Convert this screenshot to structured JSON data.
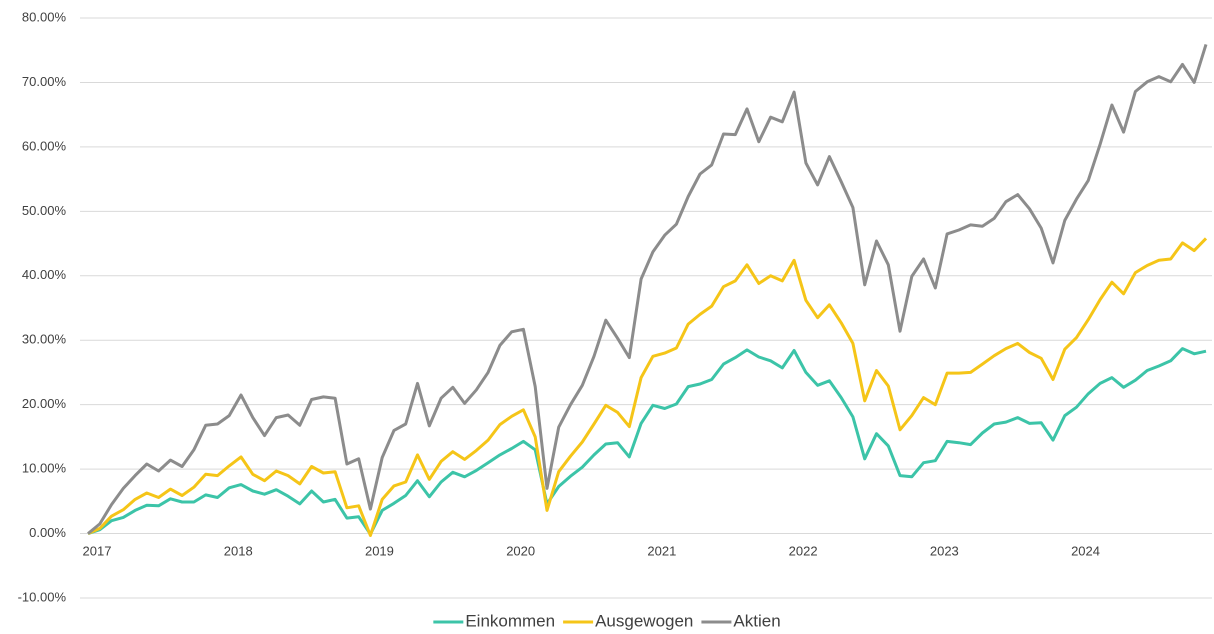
{
  "chart_data": {
    "type": "line",
    "categories": [
      "2017",
      null,
      null,
      null,
      null,
      null,
      null,
      null,
      null,
      null,
      null,
      null,
      "2018",
      null,
      null,
      null,
      null,
      null,
      null,
      null,
      null,
      null,
      null,
      null,
      "2019",
      null,
      null,
      null,
      null,
      null,
      null,
      null,
      null,
      null,
      null,
      null,
      "2020",
      null,
      null,
      null,
      null,
      null,
      null,
      null,
      null,
      null,
      null,
      null,
      "2021",
      null,
      null,
      null,
      null,
      null,
      null,
      null,
      null,
      null,
      null,
      null,
      "2022",
      null,
      null,
      null,
      null,
      null,
      null,
      null,
      null,
      null,
      null,
      null,
      "2023",
      null,
      null,
      null,
      null,
      null,
      null,
      null,
      null,
      null,
      null,
      null,
      "2024",
      null,
      null,
      null,
      null,
      null,
      null,
      null,
      null,
      null,
      null,
      null
    ],
    "series": [
      {
        "name": "Einkommen",
        "color": "#3cc4a8",
        "values": [
          0,
          0.6,
          2,
          2.5,
          3.6,
          4.4,
          4.3,
          5.4,
          4.9,
          4.9,
          6,
          5.6,
          7.1,
          7.6,
          6.6,
          6.1,
          6.8,
          5.8,
          4.6,
          6.6,
          4.9,
          5.3,
          2.4,
          2.6,
          -0.1,
          3.6,
          4.7,
          5.9,
          8.2,
          5.7,
          8,
          9.5,
          8.8,
          9.8,
          11,
          12.2,
          13.2,
          14.3,
          13,
          4.6,
          7.3,
          8.9,
          10.3,
          12.2,
          13.9,
          14.1,
          11.9,
          17.1,
          19.9,
          19.4,
          20.1,
          22.8,
          23.2,
          23.9,
          26.3,
          27.3,
          28.5,
          27.4,
          26.8,
          25.7,
          28.4,
          25,
          23,
          23.7,
          21.1,
          18.1,
          11.6,
          15.5,
          13.6,
          9,
          8.8,
          11,
          11.3,
          14.3,
          14.1,
          13.8,
          15.6,
          17,
          17.3,
          18,
          17.1,
          17.2,
          14.5,
          18.3,
          19.6,
          21.7,
          23.3,
          24.2,
          22.7,
          23.8,
          25.3,
          26,
          26.8,
          28.7,
          27.9,
          28.3
        ]
      },
      {
        "name": "Ausgewogen",
        "color": "#f5c518",
        "values": [
          0,
          0.8,
          2.7,
          3.7,
          5.3,
          6.3,
          5.6,
          6.9,
          5.9,
          7.2,
          9.2,
          9,
          10.5,
          11.9,
          9.2,
          8.2,
          9.7,
          9,
          7.7,
          10.4,
          9.4,
          9.6,
          4,
          4.3,
          -0.3,
          5.3,
          7.4,
          8,
          12.2,
          8.4,
          11.2,
          12.7,
          11.5,
          12.9,
          14.5,
          16.9,
          18.2,
          19.2,
          15,
          3.6,
          9.6,
          12,
          14.2,
          17,
          19.9,
          18.8,
          16.6,
          24.2,
          27.5,
          28,
          28.8,
          32.5,
          34,
          35.3,
          38.3,
          39.2,
          41.7,
          38.8,
          40,
          39.2,
          42.4,
          36.2,
          33.5,
          35.5,
          32.7,
          29.5,
          20.6,
          25.3,
          22.9,
          16.1,
          18.3,
          21.1,
          20,
          24.9,
          24.9,
          25,
          26.3,
          27.6,
          28.7,
          29.5,
          28.1,
          27.2,
          23.9,
          28.6,
          30.4,
          33.2,
          36.3,
          39,
          37.2,
          40.5,
          41.6,
          42.4,
          42.6,
          45.1,
          43.9,
          45.8
        ]
      },
      {
        "name": "Aktien",
        "color": "#8c8c8c",
        "values": [
          0,
          1.5,
          4.5,
          7,
          9,
          10.8,
          9.7,
          11.4,
          10.4,
          13,
          16.8,
          17,
          18.3,
          21.5,
          18,
          15.2,
          18,
          18.4,
          16.8,
          20.8,
          21.2,
          21,
          10.8,
          11.6,
          3.8,
          11.8,
          16,
          17,
          23.3,
          16.7,
          21,
          22.7,
          20.2,
          22.3,
          25,
          29.2,
          31.3,
          31.7,
          22.8,
          7,
          16.5,
          20,
          23,
          27.5,
          33.1,
          30.3,
          27.3,
          39.5,
          43.7,
          46.3,
          48,
          52.3,
          55.8,
          57.2,
          62,
          61.9,
          65.9,
          60.8,
          64.6,
          63.9,
          68.5,
          57.5,
          54.1,
          58.5,
          54.6,
          50.6,
          38.6,
          45.4,
          41.7,
          31.4,
          39.9,
          42.6,
          38.1,
          46.5,
          47.1,
          47.9,
          47.7,
          48.9,
          51.5,
          52.6,
          50.4,
          47.4,
          42,
          48.6,
          51.9,
          54.8,
          60.4,
          66.5,
          62.3,
          68.6,
          70.1,
          70.9,
          70.1,
          72.8,
          70,
          75.9
        ]
      }
    ],
    "ylim": [
      -10,
      80
    ],
    "yticks": [
      {
        "value": -10,
        "label": "-10.00%"
      },
      {
        "value": 0,
        "label": "0.00%"
      },
      {
        "value": 10,
        "label": "10.00%"
      },
      {
        "value": 20,
        "label": "20.00%"
      },
      {
        "value": 30,
        "label": "30.00%"
      },
      {
        "value": 40,
        "label": "40.00%"
      },
      {
        "value": 50,
        "label": "50.00%"
      },
      {
        "value": 60,
        "label": "60.00%"
      },
      {
        "value": 70,
        "label": "70.00%"
      },
      {
        "value": 80,
        "label": "80.00%"
      }
    ],
    "grid": true,
    "legend": "bottom"
  }
}
